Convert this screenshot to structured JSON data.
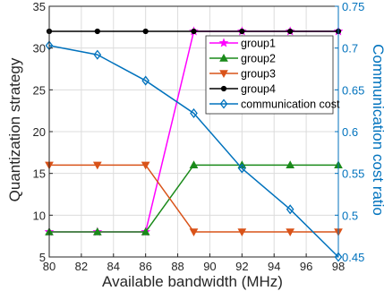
{
  "chart_data": {
    "type": "line",
    "xlabel": "Available bandwidth (MHz)",
    "ylabel_left": "Quantization strategy",
    "ylabel_right": "Communication cost ratio",
    "x": [
      80,
      83,
      86,
      89,
      92,
      95,
      98
    ],
    "xlim": [
      80,
      98
    ],
    "x_ticks": [
      "80",
      "82",
      "84",
      "86",
      "88",
      "90",
      "92",
      "94",
      "96",
      "98"
    ],
    "ylim_left": [
      5,
      35
    ],
    "y_ticks_left": [
      "5",
      "10",
      "15",
      "20",
      "25",
      "30",
      "35"
    ],
    "ylim_right": [
      0.45,
      0.75
    ],
    "y_ticks_right": [
      "0.45",
      "0.5",
      "0.55",
      "0.6",
      "0.65",
      "0.7",
      "0.75"
    ],
    "grid": true,
    "legend_position": "top-right",
    "series": [
      {
        "name": "group1",
        "axis": "left",
        "color": "#ff00ff",
        "marker": "star",
        "values": [
          8,
          8,
          8,
          32,
          32,
          32,
          32
        ]
      },
      {
        "name": "group2",
        "axis": "left",
        "color": "#1a8a1a",
        "marker": "triangle-up",
        "values": [
          8,
          8,
          8,
          16,
          16,
          16,
          16
        ]
      },
      {
        "name": "group3",
        "axis": "left",
        "color": "#d95319",
        "marker": "triangle-down",
        "values": [
          16,
          16,
          16,
          8,
          8,
          8,
          8
        ]
      },
      {
        "name": "group4",
        "axis": "left",
        "color": "#000000",
        "marker": "circle",
        "values": [
          32,
          32,
          32,
          32,
          32,
          32,
          32
        ]
      },
      {
        "name": "communication cost",
        "axis": "right",
        "color": "#0072bd",
        "marker": "diamond",
        "values": [
          0.703,
          0.692,
          0.661,
          0.622,
          0.556,
          0.507,
          0.45
        ]
      }
    ]
  }
}
